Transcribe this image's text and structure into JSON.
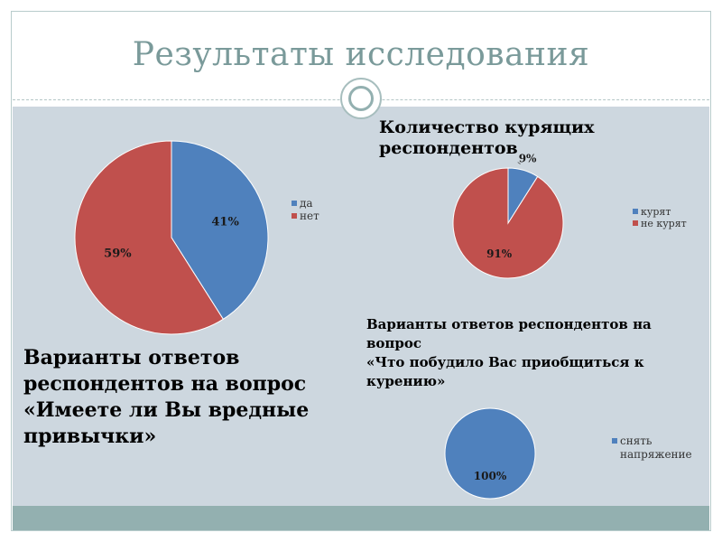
{
  "slide": {
    "title": "Результаты исследования",
    "colors": {
      "frame": "#b8cccc",
      "content_bg": "#cdd7df",
      "footer": "#93b0b0",
      "title": "#7a9a9a"
    }
  },
  "captions": {
    "chart1_lines": [
      "Варианты ответов",
      "респондентов на вопрос",
      "«Имеете ли Вы вредные",
      "привычки»"
    ],
    "chart2_lines": [
      "Количество курящих",
      "респондентов"
    ],
    "chart3_lines": [
      "Варианты ответов респондентов на",
      "вопрос",
      "«Что побудило Вас приобщиться к",
      "курению»"
    ]
  },
  "chart_data": [
    {
      "type": "pie",
      "title": "",
      "categories": [
        "да",
        "нет"
      ],
      "values": [
        41,
        59
      ],
      "data_labels": [
        "41%",
        "59%"
      ],
      "colors": [
        "#4f81bd",
        "#c0504d"
      ],
      "legend": "right"
    },
    {
      "type": "pie",
      "title": "",
      "categories": [
        "курят",
        "не курят"
      ],
      "values": [
        9,
        91
      ],
      "data_labels": [
        "9%",
        "91%"
      ],
      "colors": [
        "#4f81bd",
        "#c0504d"
      ],
      "legend": "right"
    },
    {
      "type": "pie",
      "title": "",
      "categories": [
        "снять напряжение"
      ],
      "values": [
        100
      ],
      "data_labels": [
        "100%"
      ],
      "colors": [
        "#4f81bd"
      ],
      "legend": "right",
      "legend_lines": [
        "снять",
        "напряжение"
      ]
    }
  ]
}
